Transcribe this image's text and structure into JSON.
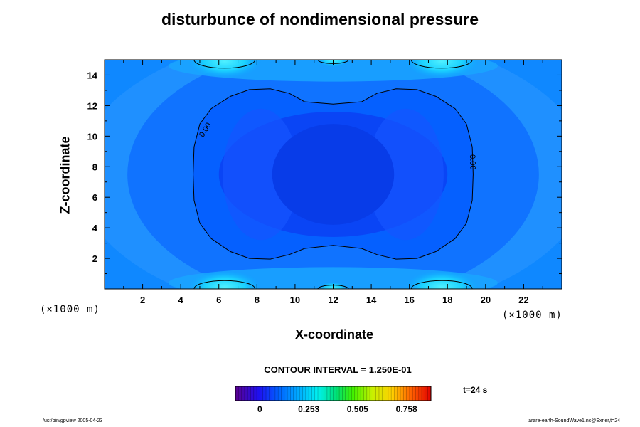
{
  "chart_data": {
    "type": "heatmap",
    "title": "disturbunce of nondimensional pressure",
    "xlabel": "X-coordinate",
    "ylabel": "Z-coordinate",
    "x_unit": "(×1000 m)",
    "y_unit": "(×1000 m)",
    "xlim": [
      0,
      24
    ],
    "ylim": [
      0,
      15
    ],
    "x_ticks": [
      2,
      4,
      6,
      8,
      10,
      12,
      14,
      16,
      18,
      20,
      22
    ],
    "y_ticks": [
      2,
      4,
      6,
      8,
      10,
      12,
      14
    ],
    "grid": false,
    "colormap": "rainbow (purple-blue-cyan-green-yellow-red)",
    "contour_interval_text": "CONTOUR INTERVAL = 1.250E-01",
    "contour_interval": 0.125,
    "colorbar_ticks": [
      0,
      0.253,
      0.505,
      0.758
    ],
    "colorbar_tick_labels": [
      "0",
      "0.253",
      "0.505",
      "0.758"
    ],
    "colorbar_range": [
      -0.126,
      0.884
    ],
    "contour_labels": [
      {
        "text": "0.00",
        "x": 5.3,
        "z": 10.4
      },
      {
        "text": "0.00",
        "x": 19.3,
        "z": 8.3
      }
    ],
    "zero_contour": {
      "level": 0.0,
      "description": "closed peanut-shaped line around the central low region; small closed arcs at the top and bottom edges near x=6, 12, 18",
      "points": [
        [
          12,
          12.1
        ],
        [
          10.5,
          12.25
        ],
        [
          9.7,
          12.8
        ],
        [
          8.7,
          13.1
        ],
        [
          7.6,
          13.05
        ],
        [
          6.6,
          12.6
        ],
        [
          5.6,
          11.8
        ],
        [
          5.0,
          10.8
        ],
        [
          4.7,
          9.3
        ],
        [
          4.65,
          7.5
        ],
        [
          4.7,
          5.8
        ],
        [
          5.0,
          4.3
        ],
        [
          5.6,
          3.3
        ],
        [
          6.6,
          2.45
        ],
        [
          7.6,
          2.0
        ],
        [
          8.7,
          1.95
        ],
        [
          9.7,
          2.25
        ],
        [
          10.5,
          2.65
        ],
        [
          12,
          2.85
        ],
        [
          13.5,
          2.65
        ],
        [
          14.3,
          2.25
        ],
        [
          15.3,
          1.95
        ],
        [
          16.4,
          2.0
        ],
        [
          17.4,
          2.45
        ],
        [
          18.4,
          3.3
        ],
        [
          19.0,
          4.3
        ],
        [
          19.3,
          5.8
        ],
        [
          19.35,
          7.5
        ],
        [
          19.3,
          9.3
        ],
        [
          19.0,
          10.8
        ],
        [
          18.4,
          11.8
        ],
        [
          17.4,
          12.6
        ],
        [
          16.4,
          13.05
        ],
        [
          15.3,
          13.1
        ],
        [
          14.3,
          12.8
        ],
        [
          13.5,
          12.25
        ],
        [
          12,
          12.1
        ]
      ]
    },
    "time_label": "t=24 s"
  },
  "footer": {
    "left": "/usr/bin/gpview 2005-04-23",
    "right": "arare-earth-SoundWave1.nc@Exner,t=24"
  }
}
